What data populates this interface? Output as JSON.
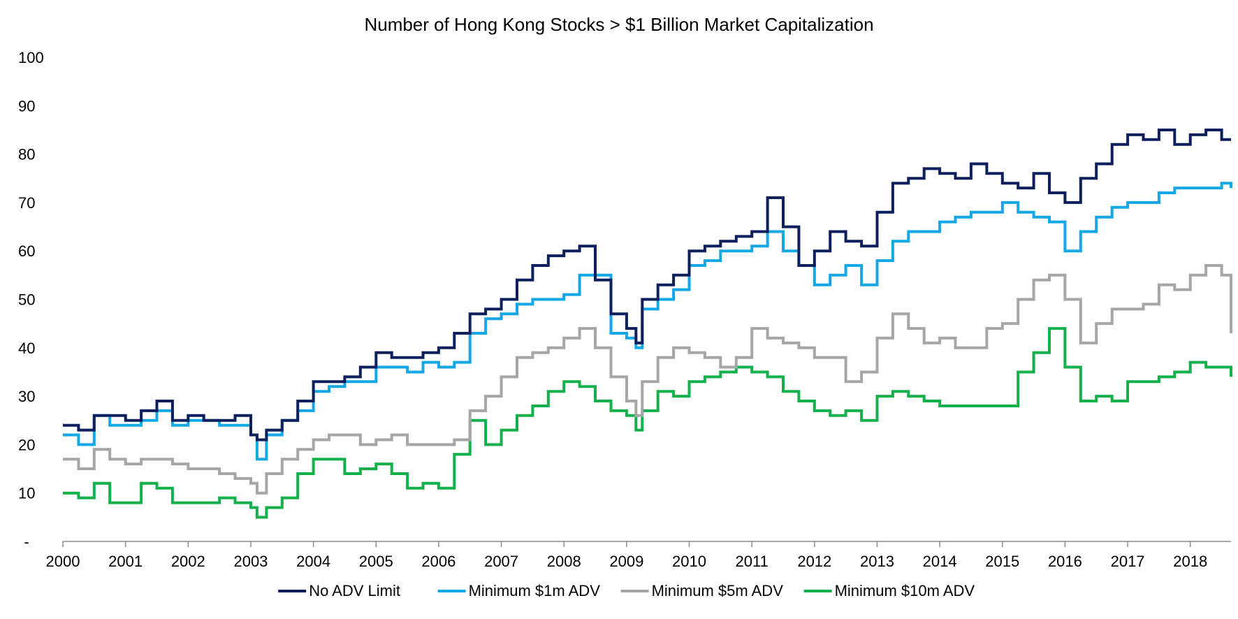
{
  "chart_data": {
    "type": "line",
    "title": "Number of Hong Kong Stocks > $1 Billion Market Capitalization",
    "xlabel": "",
    "ylabel": "",
    "xlim": [
      2000,
      2018.65
    ],
    "ylim": [
      0,
      100
    ],
    "x_ticks": [
      "2000",
      "2001",
      "2002",
      "2003",
      "2004",
      "2005",
      "2006",
      "2007",
      "2008",
      "2009",
      "2010",
      "2011",
      "2012",
      "2013",
      "2014",
      "2015",
      "2016",
      "2017",
      "2018"
    ],
    "y_ticks": [
      "-",
      "10",
      "20",
      "30",
      "40",
      "50",
      "60",
      "70",
      "80",
      "90",
      "100"
    ],
    "legend_position": "bottom",
    "grid": false,
    "x": [
      2000.0,
      2000.25,
      2000.5,
      2000.75,
      2001.0,
      2001.25,
      2001.5,
      2001.75,
      2002.0,
      2002.25,
      2002.5,
      2002.75,
      2003.0,
      2003.1,
      2003.25,
      2003.5,
      2003.75,
      2004.0,
      2004.25,
      2004.5,
      2004.75,
      2005.0,
      2005.25,
      2005.5,
      2005.75,
      2006.0,
      2006.25,
      2006.5,
      2006.75,
      2007.0,
      2007.25,
      2007.5,
      2007.75,
      2008.0,
      2008.25,
      2008.5,
      2008.75,
      2009.0,
      2009.15,
      2009.25,
      2009.5,
      2009.75,
      2010.0,
      2010.25,
      2010.5,
      2010.75,
      2011.0,
      2011.25,
      2011.5,
      2011.75,
      2012.0,
      2012.25,
      2012.5,
      2012.75,
      2013.0,
      2013.25,
      2013.5,
      2013.75,
      2014.0,
      2014.25,
      2014.5,
      2014.75,
      2015.0,
      2015.25,
      2015.5,
      2015.75,
      2016.0,
      2016.25,
      2016.5,
      2016.75,
      2017.0,
      2017.25,
      2017.5,
      2017.75,
      2018.0,
      2018.25,
      2018.5,
      2018.65
    ],
    "series": [
      {
        "name": "No ADV Limit",
        "color": "#0d1f5c",
        "values": [
          24,
          23,
          26,
          26,
          25,
          27,
          29,
          25,
          26,
          25,
          25,
          26,
          22,
          21,
          23,
          25,
          29,
          33,
          33,
          34,
          36,
          39,
          38,
          38,
          39,
          40,
          43,
          47,
          48,
          50,
          54,
          57,
          59,
          60,
          61,
          54,
          47,
          44,
          41,
          50,
          53,
          55,
          60,
          61,
          62,
          63,
          64,
          71,
          65,
          57,
          60,
          64,
          62,
          61,
          68,
          74,
          75,
          77,
          76,
          75,
          78,
          76,
          74,
          73,
          76,
          72,
          70,
          75,
          78,
          82,
          84,
          83,
          85,
          82,
          84,
          85,
          83,
          83
        ]
      },
      {
        "name": "Minimum $1m ADV",
        "color": "#13a7e6",
        "values": [
          22,
          20,
          26,
          24,
          24,
          25,
          27,
          24,
          25,
          25,
          24,
          24,
          22,
          17,
          22,
          25,
          27,
          31,
          32,
          33,
          33,
          36,
          36,
          35,
          37,
          36,
          37,
          43,
          46,
          47,
          49,
          50,
          50,
          51,
          55,
          55,
          43,
          42,
          40,
          48,
          50,
          52,
          57,
          58,
          60,
          60,
          61,
          64,
          60,
          57,
          53,
          55,
          57,
          53,
          58,
          62,
          64,
          64,
          66,
          67,
          68,
          68,
          70,
          68,
          67,
          66,
          60,
          64,
          67,
          69,
          70,
          70,
          72,
          73,
          73,
          73,
          74,
          73
        ]
      },
      {
        "name": "Minimum $5m ADV",
        "color": "#a6a6a6",
        "values": [
          17,
          15,
          19,
          17,
          16,
          17,
          17,
          16,
          15,
          15,
          14,
          13,
          12,
          10,
          14,
          17,
          19,
          21,
          22,
          22,
          20,
          21,
          22,
          20,
          20,
          20,
          21,
          27,
          30,
          34,
          38,
          39,
          40,
          42,
          44,
          40,
          34,
          29,
          26,
          33,
          38,
          40,
          39,
          38,
          36,
          38,
          44,
          42,
          41,
          40,
          38,
          38,
          33,
          35,
          42,
          47,
          44,
          41,
          42,
          40,
          40,
          44,
          45,
          50,
          54,
          55,
          50,
          41,
          45,
          48,
          48,
          49,
          53,
          52,
          55,
          57,
          55,
          43
        ]
      },
      {
        "name": "Minimum $10m ADV",
        "color": "#14b04c",
        "values": [
          10,
          9,
          12,
          8,
          8,
          12,
          11,
          8,
          8,
          8,
          9,
          8,
          7,
          5,
          7,
          9,
          14,
          17,
          17,
          14,
          15,
          16,
          14,
          11,
          12,
          11,
          18,
          25,
          20,
          23,
          26,
          28,
          31,
          33,
          32,
          29,
          27,
          26,
          23,
          27,
          31,
          30,
          33,
          34,
          35,
          36,
          35,
          34,
          31,
          29,
          27,
          26,
          27,
          25,
          30,
          31,
          30,
          29,
          28,
          28,
          28,
          28,
          28,
          35,
          39,
          44,
          36,
          29,
          30,
          29,
          33,
          33,
          34,
          35,
          37,
          36,
          36,
          34
        ]
      }
    ]
  }
}
